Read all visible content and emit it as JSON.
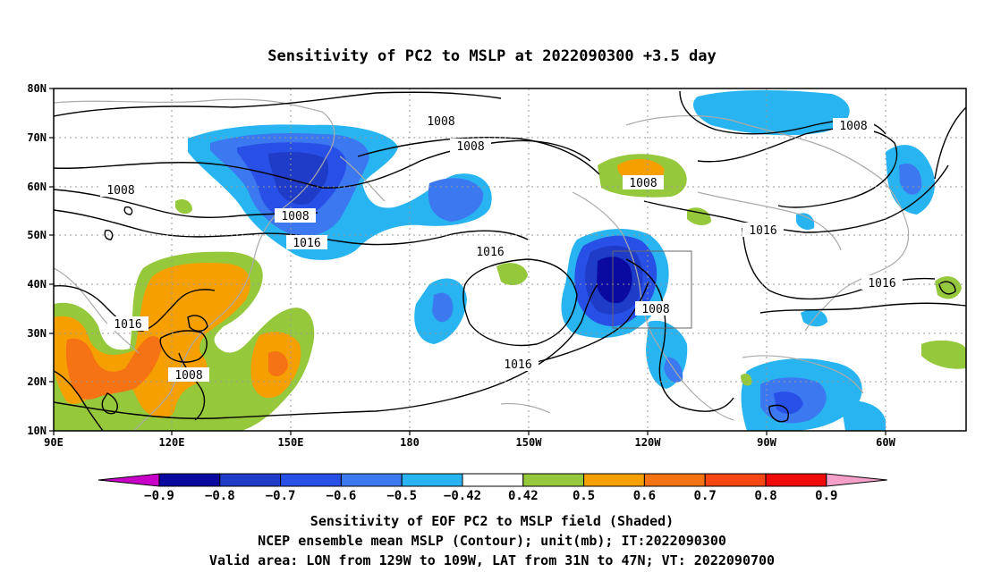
{
  "title": "Sensitivity of PC2 to MSLP at 2022090300 +3.5 day",
  "lat_labels": [
    "80N",
    "70N",
    "60N",
    "50N",
    "40N",
    "30N",
    "20N",
    "10N"
  ],
  "lon_labels": [
    "90E",
    "120E",
    "150E",
    "180",
    "150W",
    "120W",
    "90W",
    "60W"
  ],
  "contour_labels": [
    "1008",
    "1008",
    "1008",
    "1008",
    "1008",
    "1008",
    "1008",
    "1008",
    "1016",
    "1016",
    "1016",
    "1016",
    "1016",
    "1016"
  ],
  "colorbar": {
    "labels": [
      "-0.9",
      "-0.8",
      "-0.7",
      "-0.6",
      "-0.5",
      "-0.42",
      "0.42",
      "0.5",
      "0.6",
      "0.7",
      "0.8",
      "0.9"
    ],
    "colors": [
      "#c800c8",
      "#0a0aa0",
      "#1e3cc8",
      "#2850e6",
      "#3c78f0",
      "#28b4f0",
      "#ffffff",
      "#96c83c",
      "#f5a000",
      "#f57314",
      "#f54614",
      "#f00a0a",
      "#f5a0c8"
    ]
  },
  "captions": [
    "Sensitivity of EOF PC2 to MSLP field (Shaded)",
    "NCEP ensemble mean MSLP (Contour); unit(mb); IT:2022090300",
    "Valid area: LON from 129W to 109W, LAT from 31N to 47N; VT: 2022090700"
  ]
}
